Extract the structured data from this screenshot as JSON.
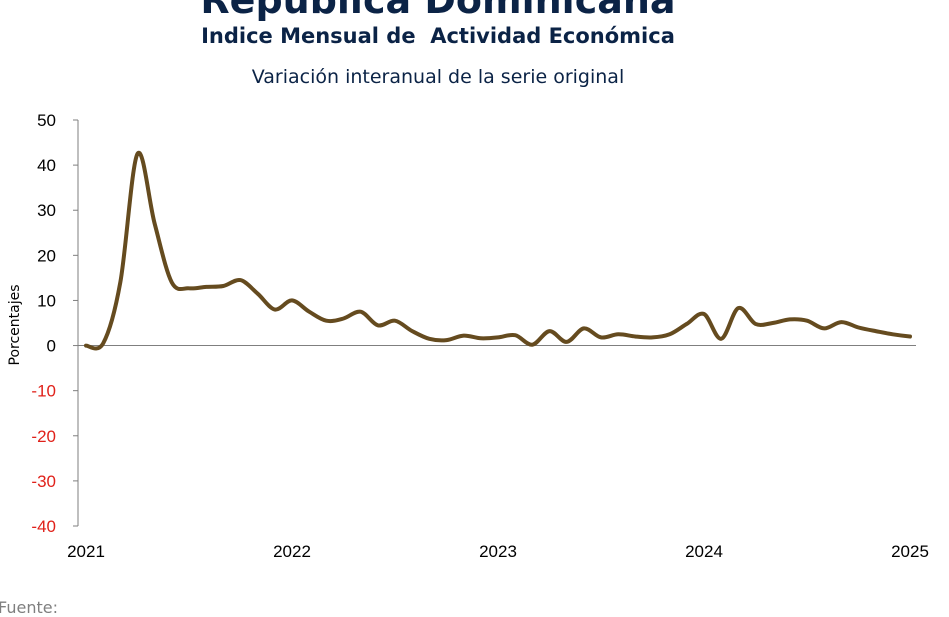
{
  "header": {
    "title": "República Dominicana",
    "subtitle": "Indice Mensual de  Actividad Económica",
    "description": "Variación interanual de la serie original"
  },
  "footer": {
    "source": "Fuente:"
  },
  "chart_data": {
    "type": "line",
    "title": "Variación interanual de la serie original",
    "xlabel": "",
    "ylabel": "Porcentajes",
    "ylim": [
      -40,
      50
    ],
    "yticks": [
      50,
      40,
      30,
      20,
      10,
      0,
      -10,
      -20,
      -30,
      -40
    ],
    "xticks": [
      "2021",
      "2022",
      "2023",
      "2024",
      "2025"
    ],
    "grid": false,
    "legend": "none",
    "line_color": "#654b1f",
    "negative_tick_color": "#e0211a",
    "series": [
      {
        "name": "",
        "x": [
          "2021-01",
          "2021-02",
          "2021-03",
          "2021-04",
          "2021-05",
          "2021-06",
          "2021-07",
          "2021-08",
          "2021-09",
          "2021-10",
          "2021-11",
          "2021-12",
          "2022-01",
          "2022-02",
          "2022-03",
          "2022-04",
          "2022-05",
          "2022-06",
          "2022-07",
          "2022-08",
          "2022-09",
          "2022-10",
          "2022-11",
          "2022-12",
          "2023-01",
          "2023-02",
          "2023-03",
          "2023-04",
          "2023-05",
          "2023-06",
          "2023-07",
          "2023-08",
          "2023-09",
          "2023-10",
          "2023-11",
          "2023-12",
          "2024-01",
          "2024-02",
          "2024-03",
          "2024-04",
          "2024-05",
          "2024-06",
          "2024-07",
          "2024-08",
          "2024-09",
          "2024-10",
          "2024-11",
          "2024-12",
          "2025-01"
        ],
        "values": [
          0,
          0.5,
          14,
          42.5,
          27,
          14,
          12.7,
          13,
          13.2,
          14.5,
          11.5,
          8,
          10,
          7.5,
          5.5,
          6,
          7.5,
          4.5,
          5.5,
          3.2,
          1.5,
          1.2,
          2.2,
          1.6,
          1.8,
          2.3,
          0.2,
          3.2,
          0.8,
          3.8,
          1.8,
          2.5,
          2,
          1.8,
          2.5,
          4.8,
          7,
          1.5,
          8.3,
          4.8,
          5,
          5.8,
          5.5,
          3.8,
          5.2,
          4,
          3.2,
          2.5,
          2
        ]
      }
    ]
  }
}
